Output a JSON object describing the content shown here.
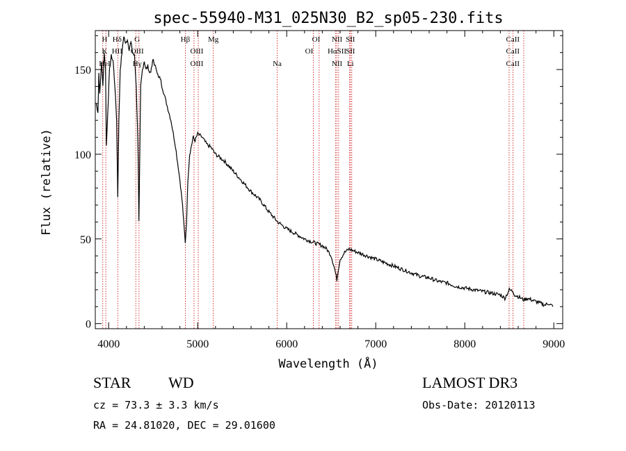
{
  "chart_data": {
    "type": "line",
    "title": "spec-55940-M31_025N30_B2_sp05-230.fits",
    "xlabel": "Wavelength (Å)",
    "ylabel": "Flux (relative)",
    "xlim": [
      3850,
      9100
    ],
    "ylim": [
      -3,
      173
    ],
    "x_ticks": [
      4000,
      5000,
      6000,
      7000,
      8000,
      9000
    ],
    "x_tick_labels": [
      "4000",
      "5000",
      "6000",
      "7000",
      "8000",
      "9000"
    ],
    "y_ticks": [
      0,
      50,
      100,
      150
    ],
    "y_tick_labels": [
      "0",
      "50",
      "100",
      "150"
    ],
    "grid": false,
    "series": [
      {
        "name": "Flux",
        "x": [
          3860,
          3880,
          3890,
          3900,
          3920,
          3935,
          3950,
          3965,
          3975,
          3990,
          4010,
          4030,
          4050,
          4070,
          4090,
          4102,
          4115,
          4130,
          4150,
          4170,
          4190,
          4210,
          4230,
          4250,
          4270,
          4290,
          4310,
          4330,
          4340,
          4350,
          4360,
          4380,
          4400,
          4420,
          4440,
          4460,
          4480,
          4500,
          4520,
          4540,
          4560,
          4580,
          4600,
          4650,
          4700,
          4750,
          4800,
          4830,
          4850,
          4861,
          4875,
          4890,
          4910,
          4930,
          4950,
          4970,
          5000,
          5050,
          5100,
          5150,
          5200,
          5300,
          5400,
          5500,
          5600,
          5700,
          5800,
          5900,
          6000,
          6100,
          6200,
          6300,
          6400,
          6450,
          6500,
          6540,
          6563,
          6580,
          6600,
          6650,
          6700,
          6750,
          6800,
          6900,
          7000,
          7100,
          7200,
          7300,
          7400,
          7500,
          7600,
          7700,
          7800,
          7900,
          8000,
          8100,
          8200,
          8300,
          8400,
          8450,
          8500,
          8542,
          8560,
          8600,
          8662,
          8700,
          8800,
          8900,
          8950,
          8990
        ],
        "y": [
          130,
          125,
          148,
          135,
          155,
          140,
          160,
          150,
          105,
          125,
          150,
          158,
          155,
          140,
          120,
          75,
          120,
          150,
          160,
          170,
          165,
          168,
          162,
          166,
          160,
          158,
          140,
          105,
          60,
          100,
          140,
          150,
          155,
          150,
          152,
          148,
          150,
          156,
          152,
          150,
          145,
          145,
          140,
          130,
          120,
          105,
          85,
          70,
          55,
          48,
          60,
          85,
          100,
          105,
          110,
          108,
          112,
          110,
          106,
          104,
          100,
          96,
          90,
          84,
          78,
          73,
          66,
          60,
          56,
          53,
          50,
          48,
          46,
          44,
          40,
          32,
          26,
          32,
          38,
          42,
          44,
          43,
          42,
          40,
          38,
          36,
          34,
          32,
          30,
          28,
          27,
          25,
          24,
          22,
          21,
          20,
          19,
          18,
          17,
          15,
          20,
          19,
          17,
          16,
          14,
          15,
          13,
          11,
          12,
          10
        ]
      }
    ],
    "lines": [
      {
        "label": "K",
        "x": 3934
      },
      {
        "label": "H",
        "x": 3968
      },
      {
        "label": "Hδ",
        "x": 4102
      },
      {
        "label": "G",
        "x": 4305
      },
      {
        "label": "Hγ",
        "x": 4341
      },
      {
        "label": "Hβ",
        "x": 4861
      },
      {
        "label": "OIII",
        "x": 4959
      },
      {
        "label": "OIII",
        "x": 5007
      },
      {
        "label": "Mg",
        "x": 5175
      },
      {
        "label": "Na",
        "x": 5893
      },
      {
        "label": "OI",
        "x": 6300
      },
      {
        "label": "OI",
        "x": 6364
      },
      {
        "label": "NII",
        "x": 6548
      },
      {
        "label": "Hα",
        "x": 6563
      },
      {
        "label": "NII",
        "x": 6583
      },
      {
        "label": "Li",
        "x": 6707
      },
      {
        "label": "SII",
        "x": 6716
      },
      {
        "label": "SII",
        "x": 6731
      },
      {
        "label": "CaII",
        "x": 8498
      },
      {
        "label": "CaII",
        "x": 8542
      },
      {
        "label": "CaII",
        "x": 8662
      }
    ],
    "line_label_stacks": [
      [
        "H",
        "K",
        "HeI"
      ],
      [
        "Hδ",
        "HII"
      ],
      [
        "G",
        "OIII",
        "Hγ"
      ],
      [
        "Hβ"
      ],
      [
        "OIII",
        "OIII"
      ],
      [
        "Mg"
      ],
      [
        "Na"
      ],
      [
        "OI",
        "OI"
      ],
      [
        "NII",
        "HαSII",
        "NII"
      ],
      [
        "SII",
        "SII",
        "Li"
      ],
      [
        "CaII",
        "CaII",
        "CaII"
      ]
    ]
  },
  "info": {
    "object_type": "STAR",
    "subclass": "WD",
    "cz": "cz = 73.3 ± 3.3 km/s",
    "radec": "RA =  24.81020, DEC =  29.01600",
    "survey": "LAMOST DR3",
    "obs_date": "Obs-Date: 20120113"
  },
  "colors": {
    "spectrum": "#000000",
    "line_marker": "#cc0000",
    "axes": "#000000"
  }
}
